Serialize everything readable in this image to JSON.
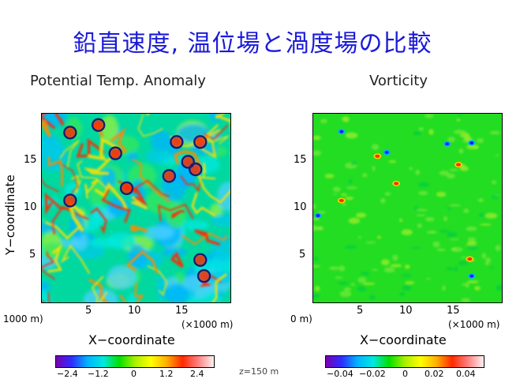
{
  "title": "鉛直速度, 温位場と渦度場の比較",
  "panels": [
    {
      "title": "Potential Temp. Anomaly",
      "ylabel": "Y−coordinate",
      "xlabel": "X−coordinate",
      "xunit": "(×1000 m)",
      "yunit": "1000 m)",
      "xticks": [
        "5",
        "10",
        "15"
      ],
      "yticks": [
        "15",
        "10",
        "5"
      ],
      "cbar_ticks": [
        "−2.4",
        "−1.2",
        "0",
        "1.2",
        "2.4"
      ]
    },
    {
      "title": "Vorticity",
      "xlabel": "X−coordinate",
      "xunit": "(×1000 m)",
      "yunit": "0 m)",
      "xticks": [
        "5",
        "10",
        "15"
      ],
      "yticks": [
        "15",
        "10",
        "5"
      ],
      "cbar_ticks": [
        "−0.04",
        "−0.02",
        "0",
        "0.02",
        "0.04"
      ]
    }
  ],
  "zlabel": "z=150 m",
  "chart_data": [
    {
      "type": "heatmap",
      "title": "Potential Temp. Anomaly",
      "xlabel": "X−coordinate",
      "ylabel": "Y−coordinate",
      "xlim": [
        0,
        20
      ],
      "ylim": [
        0,
        20
      ],
      "colorbar_range": [
        -2.4,
        2.4
      ],
      "circled_points": [
        {
          "x": 3,
          "y": 18
        },
        {
          "x": 6,
          "y": 18.8
        },
        {
          "x": 7.8,
          "y": 15.8
        },
        {
          "x": 14.3,
          "y": 17
        },
        {
          "x": 16.8,
          "y": 17
        },
        {
          "x": 15.5,
          "y": 14.9
        },
        {
          "x": 16.3,
          "y": 14.1
        },
        {
          "x": 13.5,
          "y": 13.4
        },
        {
          "x": 9,
          "y": 12.1
        },
        {
          "x": 3,
          "y": 10.8
        },
        {
          "x": 16.8,
          "y": 4.5
        },
        {
          "x": 17.2,
          "y": 2.8
        }
      ]
    },
    {
      "type": "heatmap",
      "title": "Vorticity",
      "xlabel": "X−coordinate",
      "xlim": [
        0,
        20
      ],
      "ylim": [
        0,
        20
      ],
      "colorbar_range": [
        -0.04,
        0.04
      ],
      "positive_spots": [
        {
          "x": 3,
          "y": 10.8
        },
        {
          "x": 8.8,
          "y": 12.6
        },
        {
          "x": 15.4,
          "y": 14.6
        },
        {
          "x": 16.6,
          "y": 4.6
        },
        {
          "x": 6.8,
          "y": 15.5
        }
      ],
      "negative_spots": [
        {
          "x": 7.8,
          "y": 15.9
        },
        {
          "x": 3,
          "y": 18.1
        },
        {
          "x": 14.2,
          "y": 16.8
        },
        {
          "x": 16.8,
          "y": 2.8
        },
        {
          "x": 16.8,
          "y": 16.9
        },
        {
          "x": 0.5,
          "y": 9.2
        }
      ]
    }
  ],
  "colors": {
    "title": "#1a1ad8",
    "circle": "#1b1b6e"
  }
}
